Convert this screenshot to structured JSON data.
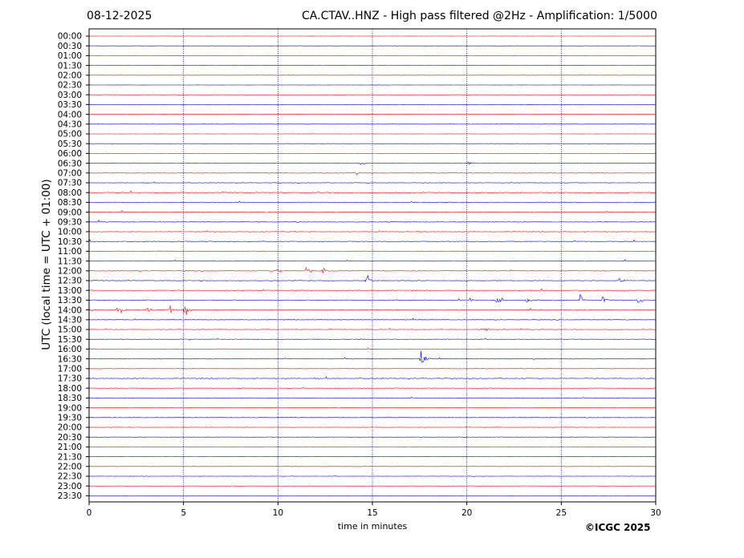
{
  "header": {
    "date": "08-12-2025",
    "title": "CA.CTAV..HNZ - High pass filtered @2Hz - Amplification: 1/5000"
  },
  "footer": {
    "copyright": "©ICGC 2025"
  },
  "colors": {
    "trace_a": "#ff0000",
    "trace_b": "#0000ff",
    "gridline": "#00007f",
    "frame": "#000000"
  },
  "chart_data": {
    "type": "line",
    "title": "CA.CTAV..HNZ - High pass filtered @2Hz - Amplification: 1/5000",
    "xlabel": "time in minutes",
    "ylabel": "UTC (local time = UTC + 01:00)",
    "xlim": [
      0,
      30
    ],
    "x_ticks": [
      "0",
      "5",
      "10",
      "15",
      "20",
      "25",
      "30"
    ],
    "grid": "vertical dotted at every 5 minutes",
    "trace_colors_alternate": [
      "red",
      "blue"
    ],
    "rows": [
      "00:00",
      "00:30",
      "01:00",
      "01:30",
      "02:00",
      "02:30",
      "03:00",
      "03:30",
      "04:00",
      "04:30",
      "05:00",
      "05:30",
      "06:00",
      "06:30",
      "07:00",
      "07:30",
      "08:00",
      "08:30",
      "09:00",
      "09:30",
      "10:00",
      "10:30",
      "11:00",
      "11:30",
      "12:00",
      "12:30",
      "13:00",
      "13:30",
      "14:00",
      "14:30",
      "15:00",
      "15:30",
      "16:00",
      "16:30",
      "17:00",
      "17:30",
      "18:00",
      "18:30",
      "19:00",
      "19:30",
      "20:00",
      "20:30",
      "21:00",
      "21:30",
      "22:00",
      "22:30",
      "23:00",
      "23:30"
    ],
    "activity": [
      0,
      0,
      0,
      0,
      0,
      0,
      0,
      0,
      0,
      0,
      0,
      0,
      0,
      0.15,
      0.12,
      0.12,
      0.25,
      0.2,
      0.2,
      0.25,
      0.2,
      0.22,
      0.18,
      0.18,
      0.25,
      0.22,
      0.2,
      0.3,
      0.3,
      0.18,
      0.18,
      0.2,
      0.15,
      0.2,
      0.12,
      0.2,
      0.12,
      0.15,
      0.08,
      0.12,
      0.12,
      0.1,
      0.05,
      0.05,
      0.05,
      0.05,
      0.02,
      0.02
    ],
    "events": [
      {
        "row": "06:30",
        "minute": 14.4,
        "amplitude": 0.25
      },
      {
        "row": "06:30",
        "minute": 20.1,
        "amplitude": 0.2
      },
      {
        "row": "07:00",
        "minute": 14.1,
        "amplitude": 0.3
      },
      {
        "row": "12:00",
        "minute": 10.0,
        "amplitude": 0.45
      },
      {
        "row": "12:00",
        "minute": 11.5,
        "amplitude": 0.45
      },
      {
        "row": "12:00",
        "minute": 12.4,
        "amplitude": 0.4
      },
      {
        "row": "12:30",
        "minute": 14.7,
        "amplitude": 0.6
      },
      {
        "row": "12:30",
        "minute": 28.1,
        "amplitude": 0.4
      },
      {
        "row": "13:30",
        "minute": 20.1,
        "amplitude": 0.5
      },
      {
        "row": "13:30",
        "minute": 21.6,
        "amplitude": 0.5
      },
      {
        "row": "13:30",
        "minute": 23.2,
        "amplitude": 0.4
      },
      {
        "row": "13:30",
        "minute": 26.0,
        "amplitude": 0.5
      },
      {
        "row": "13:30",
        "minute": 27.2,
        "amplitude": 0.4
      },
      {
        "row": "13:30",
        "minute": 29.1,
        "amplitude": 0.6
      },
      {
        "row": "14:00",
        "minute": 1.5,
        "amplitude": 0.7
      },
      {
        "row": "14:00",
        "minute": 3.1,
        "amplitude": 0.4
      },
      {
        "row": "14:00",
        "minute": 4.3,
        "amplitude": 0.45
      },
      {
        "row": "14:00",
        "minute": 5.05,
        "amplitude": 0.8
      },
      {
        "row": "15:00",
        "minute": 21.0,
        "amplitude": 0.2
      },
      {
        "row": "16:30",
        "minute": 17.6,
        "amplitude": 1.0
      }
    ]
  }
}
